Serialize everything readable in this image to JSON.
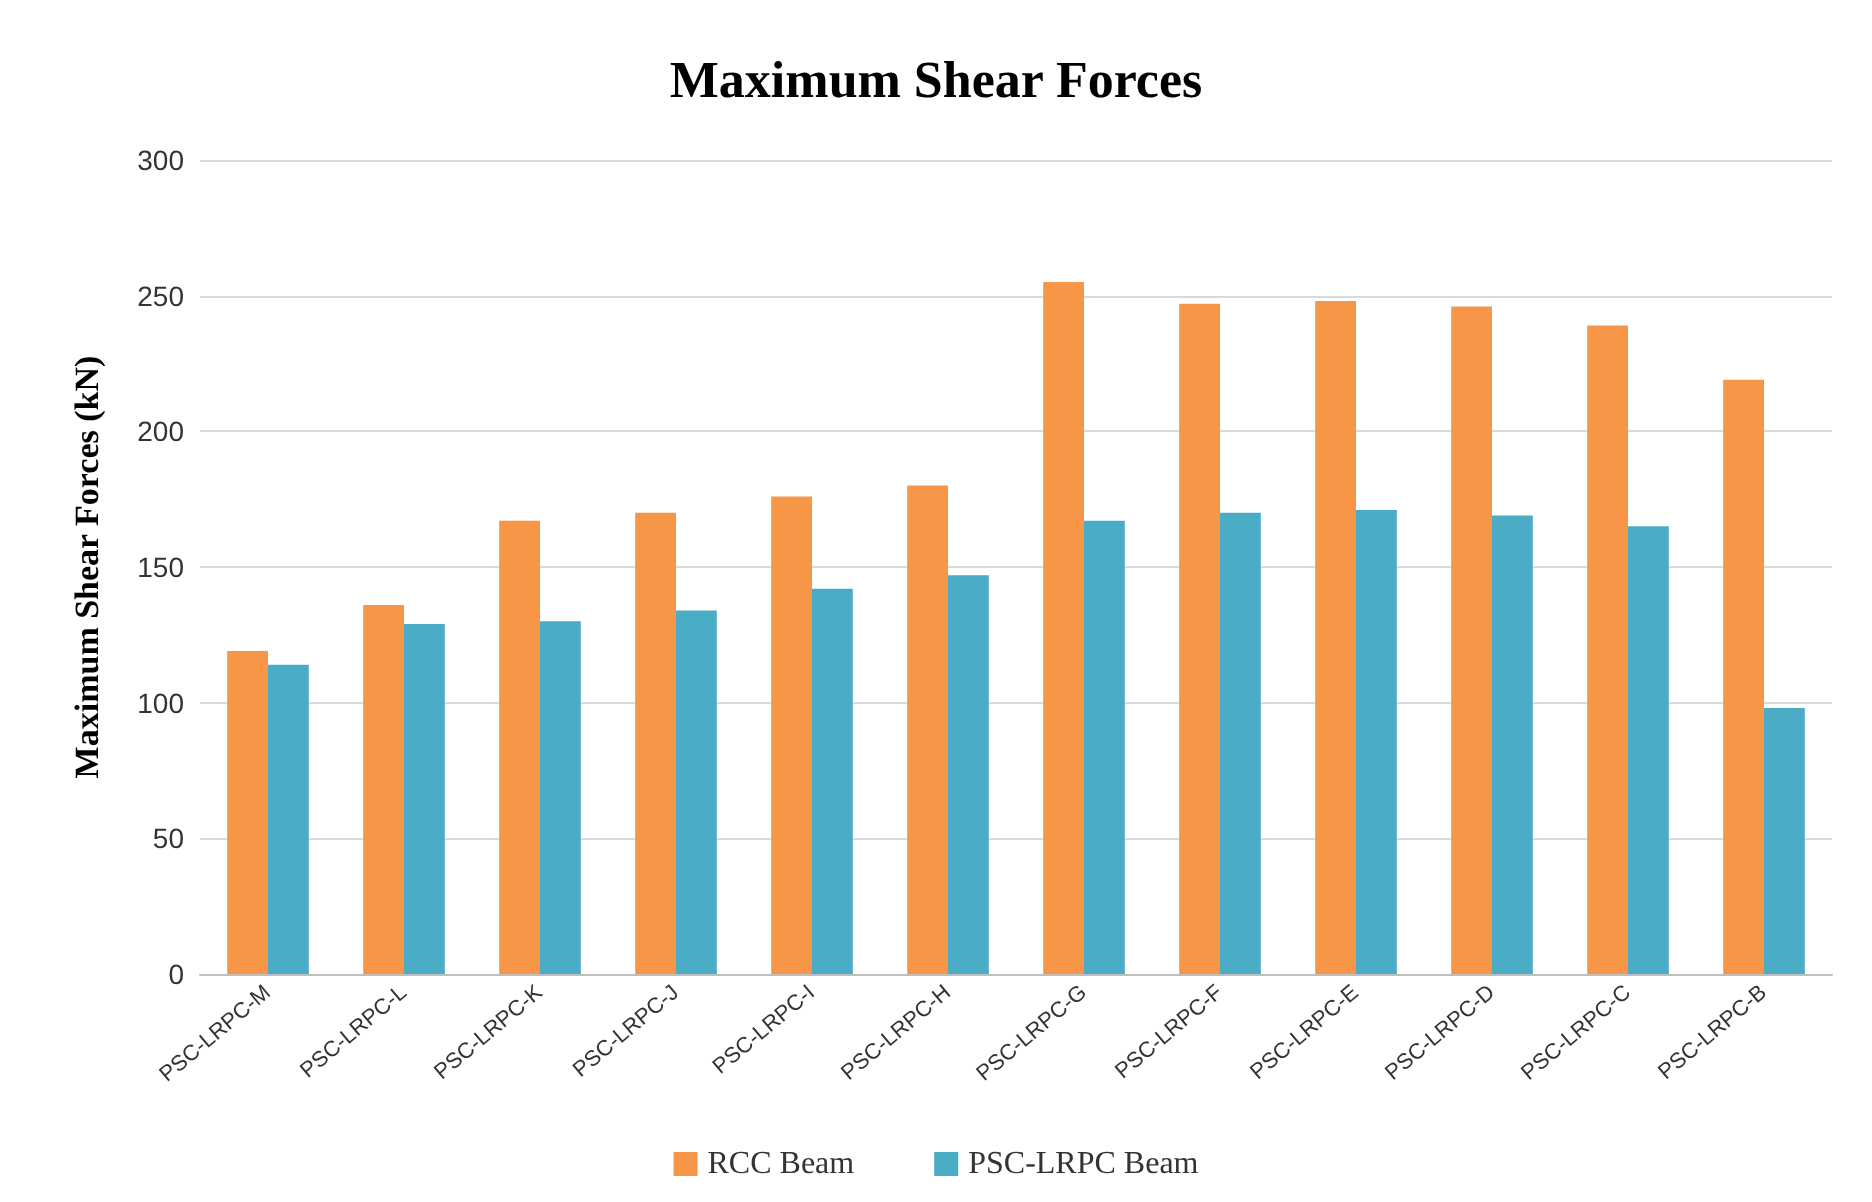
{
  "chart_data": {
    "type": "bar",
    "title": "Maximum Shear Forces",
    "ylabel": "Maximum Shear Forces (kN)",
    "categories": [
      "PSC-LRPC-M",
      "PSC-LRPC-L",
      "PSC-LRPC-K",
      "PSC-LRPC-J",
      "PSC-LRPC-I",
      "PSC-LRPC-H",
      "PSC-LRPC-G",
      "PSC-LRPC-F",
      "PSC-LRPC-E",
      "PSC-LRPC-D",
      "PSC-LRPC-C",
      "PSC-LRPC-B"
    ],
    "series": [
      {
        "name": "RCC Beam",
        "color": "#f79646",
        "values": [
          119,
          136,
          167,
          170,
          176,
          180,
          255,
          247,
          248,
          246,
          239,
          219
        ]
      },
      {
        "name": "PSC-LRPC Beam",
        "color": "#4bacc6",
        "values": [
          114,
          129,
          130,
          134,
          142,
          147,
          167,
          170,
          171,
          169,
          165,
          98
        ]
      }
    ],
    "ylim": [
      0,
      300
    ],
    "yticks": [
      0,
      50,
      100,
      150,
      200,
      250,
      300
    ],
    "grid": "y",
    "legend": "bottom"
  }
}
